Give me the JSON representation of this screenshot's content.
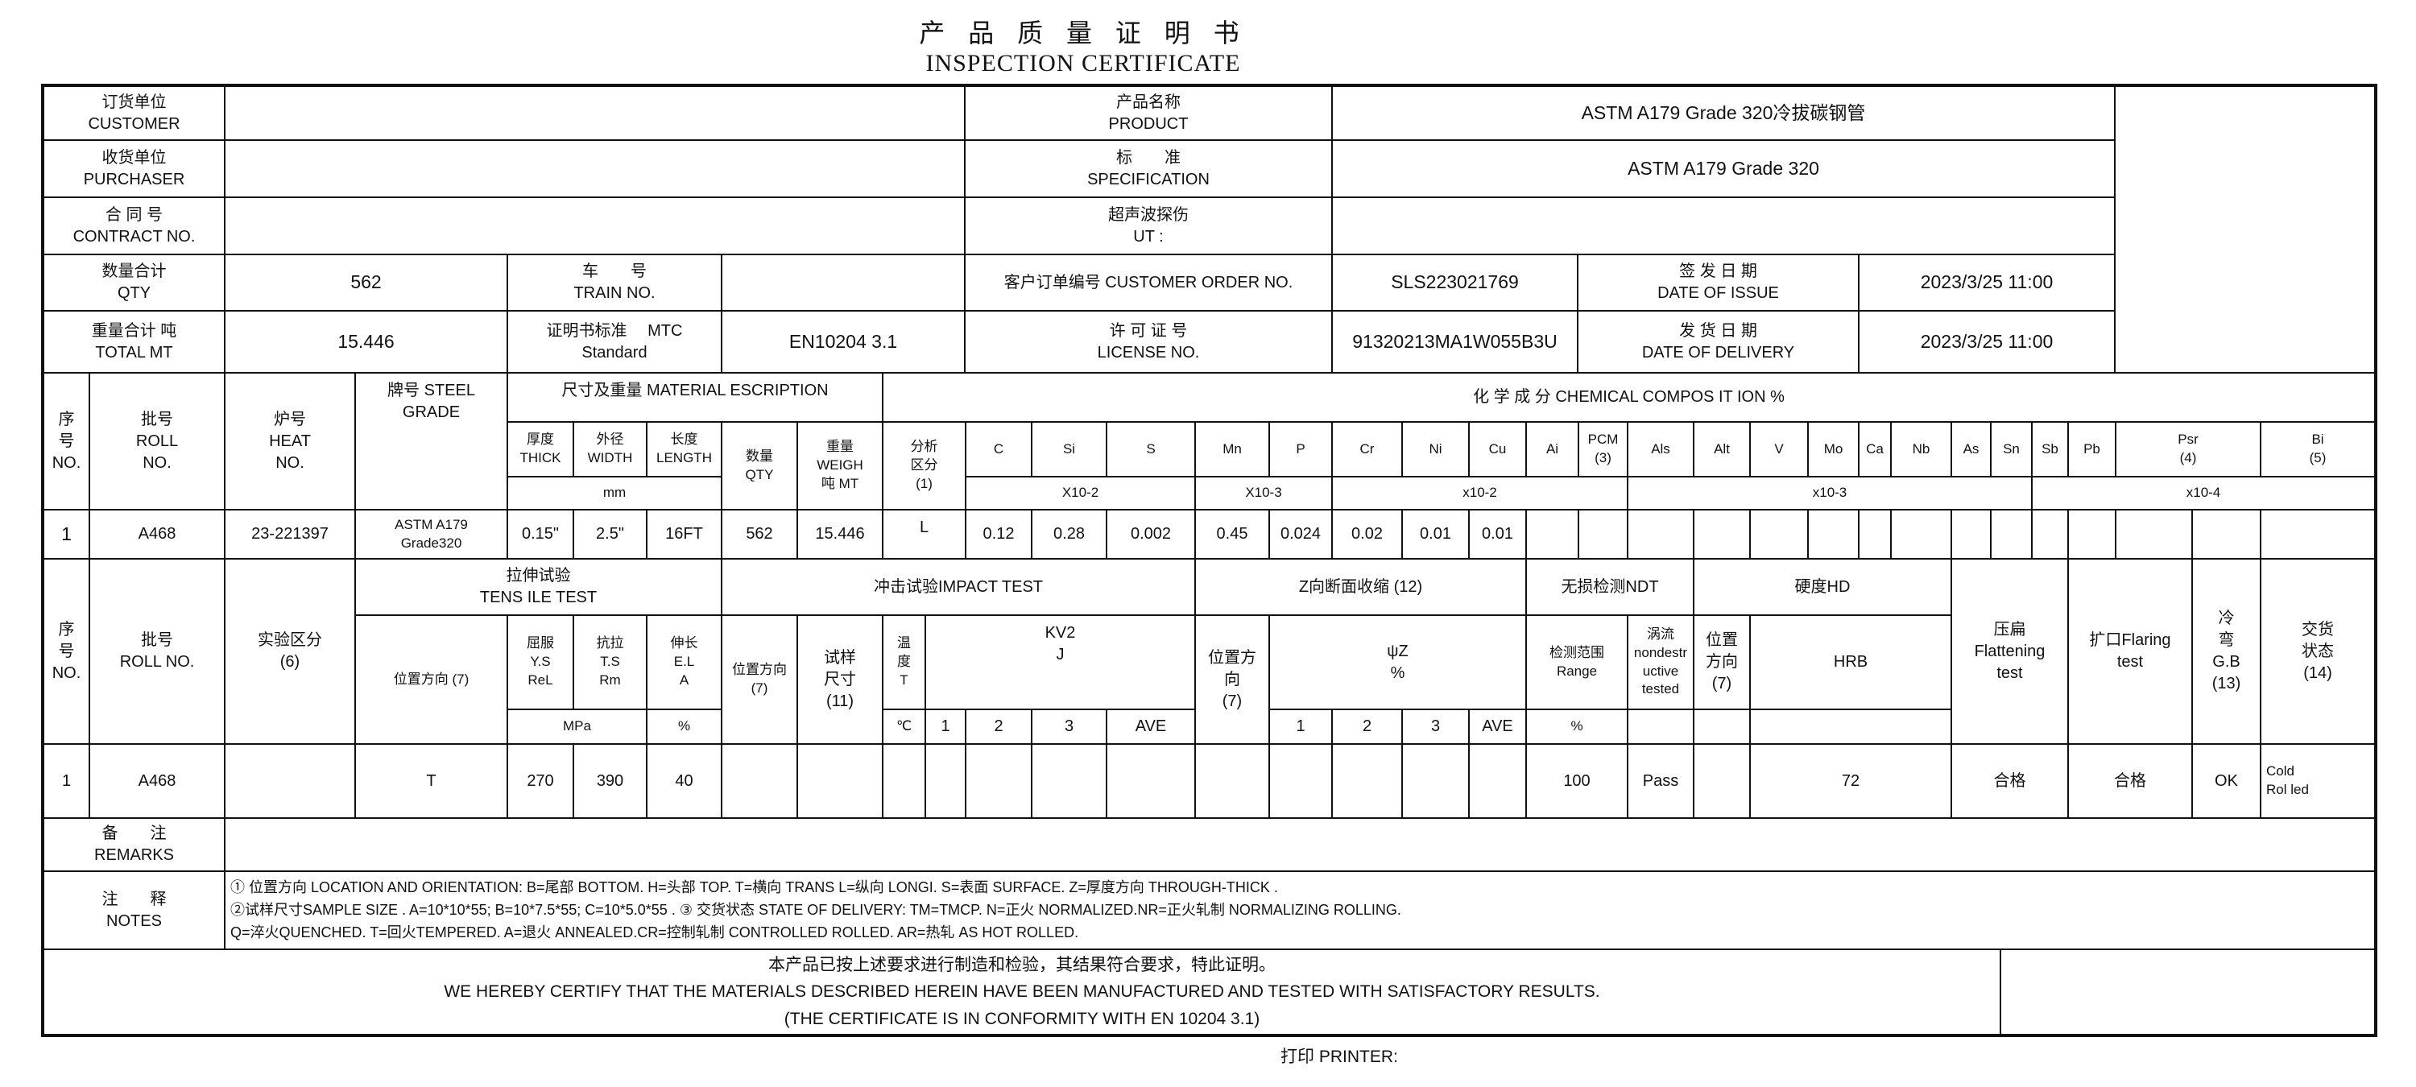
{
  "title": {
    "cn": "产 品 质 量 证 明 书",
    "en": "INSPECTION CERTIFICATE"
  },
  "info": {
    "customer_label": "订货单位\nCUSTOMER",
    "purchaser_label": "收货单位\nPURCHASER",
    "contract_label": "合 同 号\nCONTRACT NO.",
    "product_label": "产品名称\nPRODUCT",
    "product": "ASTM A179 Grade 320冷拔碳钢管",
    "spec_label": "标　　准\nSPECIFICATION",
    "spec": "ASTM A179 Grade 320",
    "ut_label": "超声波探伤\nUT :",
    "qty_label": "数量合计\nQTY",
    "qty": "562",
    "train_label": "车　　号\nTRAIN NO.",
    "order_label": "客户订单编号 CUSTOMER ORDER NO.",
    "order": "SLS223021769",
    "issue_label": "签 发 日 期\nDATE OF ISSUE",
    "issue": "2023/3/25 11:00",
    "total_label": "重量合计 吨\nTOTAL MT",
    "total": "15.446",
    "mtc_label": "证明书标准　 MTC\nStandard",
    "mtc": "EN10204 3.1",
    "license_label": "许 可 证 号\nLICENSE NO.",
    "license": "91320213MA1W055B3U",
    "delivery_label": "发 货 日 期\nDATE OF DELIVERY",
    "delivery": "2023/3/25 11:00"
  },
  "material": {
    "no_label": "序\n号\nNO.",
    "roll_label": "批号\nROLL\nNO.",
    "heat_label": "炉号\nHEAT\nNO.",
    "grade_label": "牌号 STEEL\nGRADE",
    "desc_label": "尺寸及重量 MATERIAL ESCRIPTION",
    "thick_label": "厚度\nTHICK",
    "width_label": "外径\nWIDTH",
    "length_label": "长度\nLENGTH",
    "size_unit": "mm",
    "qty_label": "数量\nQTY",
    "weight_label": "重量\nWEIGH\n吨 MT",
    "analysis_label": "分析\n区分\n(1)",
    "chem_label": "化 学 成 分  CHEMICAL COMPOS IT ION %",
    "elements": [
      "C",
      "Si",
      "S",
      "Mn",
      "P",
      "Cr",
      "Ni",
      "Cu",
      "Ai",
      "PCM\n(3)",
      "Als",
      "Alt",
      "V",
      "Mo",
      "Ca",
      "Nb",
      "As",
      "Sn",
      "Sb",
      "Pb",
      "Psr\n(4)",
      "Bi\n(5)"
    ],
    "units": [
      "X10-2",
      "X10-3",
      "x10-2",
      "x10-3",
      "x10-4"
    ],
    "row": {
      "no": "1",
      "roll": "A468",
      "heat": "23-221397",
      "grade": "ASTM A179\nGrade320",
      "thick": "0.15\"",
      "width": "2.5\"",
      "length": "16FT",
      "qty": "562",
      "weight": "15.446",
      "analysis": "L",
      "values": [
        "0.12",
        "0.28",
        "0.002",
        "0.45",
        "0.024",
        "0.02",
        "0.01",
        "0.01"
      ]
    }
  },
  "tests": {
    "no_label": "序\n号\nNO.",
    "roll_label": "批号\nROLL NO.",
    "class_label": "实验区分\n(6)",
    "tensile_label": "拉伸试验\nTENS ILE TEST",
    "t_pos_label": "位置方向 (7)",
    "ys_label": "屈服\nY.S\nReL",
    "ts_label": "抗拉\nT.S\nRm",
    "el_label": "伸长\nE.L\nA",
    "mpa_unit": "MPa",
    "pct_unit": "%",
    "impact_label": "冲击试验IMPACT TEST",
    "i_pos_label": "位置方向\n(7)",
    "i_size_label": "试样\n尺寸\n(11)",
    "i_temp_label": "温\n度\nT",
    "kv2_label": "KV2\nJ",
    "temp_unit": "℃",
    "i_cols": [
      "1",
      "2",
      "3",
      "AVE"
    ],
    "z_label": "Z向断面收缩 (12)",
    "z_pos_label": "位置方\n向\n(7)",
    "psi_label": "ψZ\n%",
    "z_cols": [
      "1",
      "2",
      "3",
      "AVE"
    ],
    "ndt_label": "无损检测NDT",
    "range_label": "检测范围\nRange",
    "range_unit": "%",
    "eddy_label": "涡流\nnondestr\nuctive\ntested",
    "hd_label": "硬度HD",
    "h_pos_label": "位置\n方向\n(7)",
    "hrb_label": "HRB",
    "flatten_label": "压扁\nFlattening\ntest",
    "flaring_label": "扩口Flaring\ntest",
    "bend_label": "冷\n弯\nG.B\n(13)",
    "delivery_label": "交货\n状态\n(14)",
    "row": {
      "no": "1",
      "roll": "A468",
      "position": "T",
      "ys": "270",
      "ts": "390",
      "el": "40",
      "range": "100",
      "eddy": "Pass",
      "hrb": "72",
      "flatten": "合格",
      "flaring": "合格",
      "bend": "OK",
      "delivery": "Cold\nRol led"
    }
  },
  "remarks": {
    "label": "备　　注\nREMARKS"
  },
  "notes": {
    "label": "注　　释\nNOTES",
    "lines": [
      "① 位置方向 LOCATION AND ORIENTATION: B=尾部 BOTTOM. H=头部 TOP. T=横向 TRANS L=纵向 LONGI. S=表面 SURFACE. Z=厚度方向 THROUGH-THICK .",
      "②试样尺寸SAMPLE SIZE . A=10*10*55; B=10*7.5*55; C=10*5.0*55 .  ③ 交货状态 STATE OF DELIVERY: TM=TMCP. N=正火 NORMALIZED.NR=正火轧制 NORMALIZING ROLLING.",
      "Q=淬火QUENCHED. T=回火TEMPERED. A=退火 ANNEALED.CR=控制轧制 CONTROLLED ROLLED. AR=热轧 AS HOT ROLLED."
    ]
  },
  "certify": {
    "cn": "本产品已按上述要求进行制造和检验，其结果符合要求，特此证明。",
    "en": "WE HEREBY CERTIFY THAT THE MATERIALS DESCRIBED HEREIN HAVE BEEN MANUFACTURED AND TESTED WITH SATISFACTORY RESULTS.",
    "conformity": "(THE CERTIFICATE IS IN CONFORMITY WITH EN 10204 3.1)"
  },
  "printer": {
    "label": "打印 PRINTER:"
  }
}
